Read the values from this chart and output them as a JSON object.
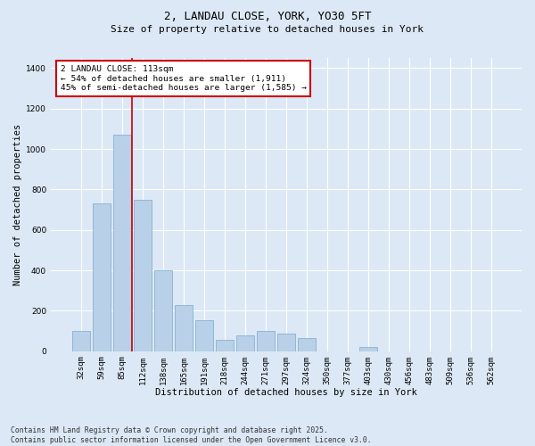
{
  "title1": "2, LANDAU CLOSE, YORK, YO30 5FT",
  "title2": "Size of property relative to detached houses in York",
  "xlabel": "Distribution of detached houses by size in York",
  "ylabel": "Number of detached properties",
  "categories": [
    "32sqm",
    "59sqm",
    "85sqm",
    "112sqm",
    "138sqm",
    "165sqm",
    "191sqm",
    "218sqm",
    "244sqm",
    "271sqm",
    "297sqm",
    "324sqm",
    "350sqm",
    "377sqm",
    "403sqm",
    "430sqm",
    "456sqm",
    "483sqm",
    "509sqm",
    "536sqm",
    "562sqm"
  ],
  "values": [
    100,
    730,
    1070,
    750,
    400,
    230,
    155,
    55,
    80,
    100,
    85,
    65,
    0,
    0,
    20,
    0,
    0,
    0,
    0,
    0,
    0
  ],
  "bar_color": "#b8d0e8",
  "bar_edge_color": "#7aaac8",
  "ylim": [
    0,
    1450
  ],
  "yticks": [
    0,
    200,
    400,
    600,
    800,
    1000,
    1200,
    1400
  ],
  "vline_x": 2.5,
  "vline_color": "#cc0000",
  "property_label": "2 LANDAU CLOSE: 113sqm",
  "annotation_line1": "← 54% of detached houses are smaller (1,911)",
  "annotation_line2": "45% of semi-detached houses are larger (1,585) →",
  "annotation_box_color": "#cc0000",
  "annotation_box_fill": "#ffffff",
  "footer1": "Contains HM Land Registry data © Crown copyright and database right 2025.",
  "footer2": "Contains public sector information licensed under the Open Government Licence v3.0.",
  "bg_color": "#dce8f5",
  "plot_bg_color": "#dce8f5",
  "grid_color": "#ffffff",
  "title1_fontsize": 9,
  "title2_fontsize": 8,
  "label_fontsize": 7.5,
  "tick_fontsize": 6.5,
  "footer_fontsize": 5.8,
  "annotation_fontsize": 6.8
}
